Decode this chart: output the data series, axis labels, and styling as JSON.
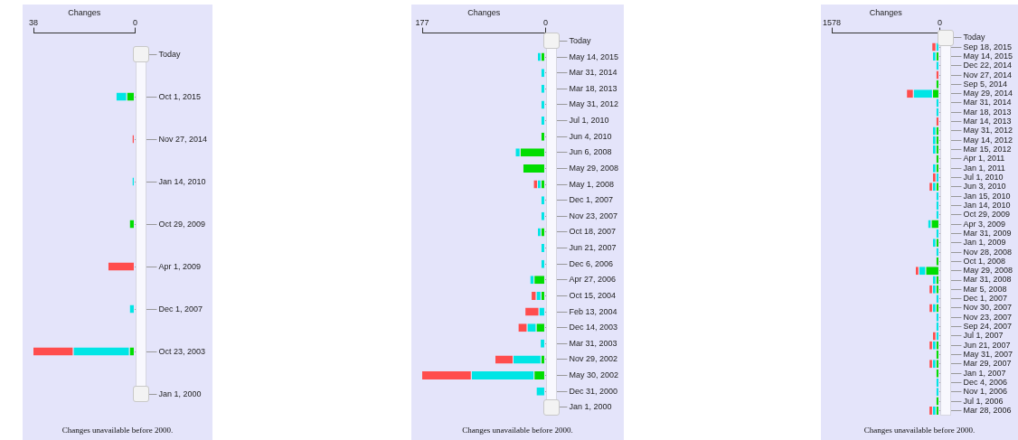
{
  "chart_data": [
    {
      "type": "bar",
      "orientation": "horizontal",
      "stacked": true,
      "xlabel": "Changes",
      "xlim": [
        38,
        0
      ],
      "xticks": [
        38,
        0
      ],
      "categories": [
        "Today",
        "Oct 1, 2015",
        "Nov 27, 2014",
        "Jan 14, 2010",
        "Oct 29, 2009",
        "Apr 1, 2009",
        "Dec 1, 2007",
        "Oct 23, 2003",
        "Jan 1, 2000"
      ],
      "series": [
        {
          "color": "#00dd00",
          "values": [
            null,
            3,
            null,
            null,
            2,
            null,
            null,
            2,
            null
          ]
        },
        {
          "color": "#00e5e5",
          "values": [
            null,
            4,
            null,
            1,
            null,
            null,
            2,
            21,
            null
          ]
        },
        {
          "color": "#ff4d4d",
          "values": [
            null,
            null,
            1,
            null,
            null,
            10,
            null,
            15,
            null
          ]
        }
      ],
      "annotations": [
        "Changes unavailable before 2000."
      ]
    },
    {
      "type": "bar",
      "orientation": "horizontal",
      "stacked": true,
      "xlabel": "Changes",
      "xlim": [
        177,
        0
      ],
      "xticks": [
        177,
        0
      ],
      "categories": [
        "Today",
        "May 14, 2015",
        "Mar 31, 2014",
        "Mar 18, 2013",
        "May 31, 2012",
        "Jul 1, 2010",
        "Jun 4, 2010",
        "Jun 6, 2008",
        "May 29, 2008",
        "May 1, 2008",
        "Dec 1, 2007",
        "Nov 23, 2007",
        "Oct 18, 2007",
        "Jun 21, 2007",
        "Dec 6, 2006",
        "Apr 27, 2006",
        "Oct 15, 2004",
        "Feb 13, 2004",
        "Dec 14, 2003",
        "Mar 31, 2003",
        "Nov 29, 2002",
        "May 30, 2002",
        "Dec 31, 2000",
        "Jan 1, 2000"
      ],
      "series": [
        {
          "color": "#00dd00",
          "values": [
            null,
            6,
            null,
            null,
            null,
            null,
            6,
            36,
            32,
            6,
            null,
            null,
            6,
            null,
            null,
            16,
            6,
            null,
            13,
            null,
            6,
            16,
            null,
            null
          ]
        },
        {
          "color": "#00e5e5",
          "values": [
            null,
            5,
            6,
            6,
            6,
            6,
            null,
            7,
            null,
            5,
            6,
            6,
            5,
            6,
            6,
            6,
            7,
            9,
            13,
            7,
            40,
            90,
            13,
            null
          ]
        },
        {
          "color": "#ff4d4d",
          "values": [
            null,
            null,
            null,
            null,
            null,
            null,
            null,
            null,
            null,
            6,
            null,
            null,
            null,
            null,
            null,
            null,
            7,
            20,
            13,
            null,
            26,
            71,
            null,
            null
          ]
        }
      ],
      "annotations": [
        "Changes unavailable before 2000."
      ]
    },
    {
      "type": "bar",
      "orientation": "horizontal",
      "stacked": true,
      "xlabel": "Changes",
      "xlim": [
        1578,
        0
      ],
      "xticks": [
        1578,
        0
      ],
      "categories": [
        "Today",
        "Sep 18, 2015",
        "May 14, 2015",
        "Dec 22, 2014",
        "Nov 27, 2014",
        "Sep 5, 2014",
        "May 29, 2014",
        "Mar 31, 2014",
        "Mar 18, 2013",
        "Mar 14, 2013",
        "May 31, 2012",
        "May 14, 2012",
        "Mar 15, 2012",
        "Apr 1, 2011",
        "Jan 1, 2011",
        "Jul 1, 2010",
        "Jun 3, 2010",
        "Jan 15, 2010",
        "Jan 14, 2010",
        "Oct 29, 2009",
        "Apr 3, 2009",
        "Mar 31, 2009",
        "Jan 1, 2009",
        "Nov 28, 2008",
        "Oct 1, 2008",
        "May 29, 2008",
        "Mar 31, 2008",
        "Mar 5, 2008",
        "Dec 1, 2007",
        "Nov 30, 2007",
        "Nov 23, 2007",
        "Sep 24, 2007",
        "Jul 1, 2007",
        "Jun 21, 2007",
        "May 31, 2007",
        "Mar 29, 2007",
        "Jan 1, 2007",
        "Dec 4, 2006",
        "Nov 1, 2006",
        "Jul 1, 2006",
        "Mar 28, 2006"
      ],
      "series": [
        {
          "color": "#00dd00",
          "values": [
            null,
            null,
            50,
            null,
            null,
            50,
            100,
            null,
            null,
            null,
            50,
            50,
            50,
            50,
            50,
            null,
            50,
            null,
            null,
            null,
            120,
            null,
            50,
            null,
            50,
            200,
            50,
            50,
            null,
            50,
            null,
            null,
            null,
            50,
            50,
            50,
            50,
            null,
            null,
            50,
            50
          ]
        },
        {
          "color": "#00e5e5",
          "values": [
            null,
            50,
            50,
            50,
            null,
            null,
            280,
            50,
            50,
            null,
            50,
            50,
            50,
            null,
            50,
            50,
            50,
            50,
            50,
            50,
            50,
            50,
            50,
            50,
            null,
            100,
            50,
            50,
            50,
            50,
            50,
            50,
            50,
            50,
            null,
            50,
            null,
            50,
            50,
            null,
            50
          ]
        },
        {
          "color": "#ff4d4d",
          "values": [
            null,
            60,
            null,
            null,
            50,
            null,
            100,
            null,
            null,
            50,
            null,
            null,
            null,
            null,
            null,
            50,
            50,
            null,
            null,
            null,
            null,
            null,
            null,
            null,
            null,
            50,
            null,
            50,
            null,
            50,
            null,
            null,
            50,
            50,
            null,
            50,
            null,
            null,
            null,
            null,
            50
          ]
        }
      ],
      "annotations": [
        "Changes unavailable before 2000."
      ]
    }
  ]
}
